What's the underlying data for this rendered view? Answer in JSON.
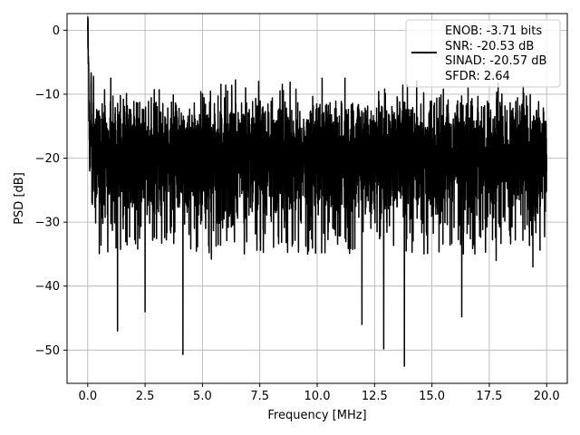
{
  "chart_data": {
    "type": "line",
    "title": "",
    "xlabel": "Frequency [MHz]",
    "ylabel": "PSD [dB]",
    "xlim": [
      -0.9,
      20.9
    ],
    "ylim": [
      -55.2,
      2.6
    ],
    "xticks": [
      0.0,
      2.5,
      5.0,
      7.5,
      10.0,
      12.5,
      15.0,
      17.5,
      20.0
    ],
    "xtick_labels": [
      "0.0",
      "2.5",
      "5.0",
      "7.5",
      "10.0",
      "12.5",
      "15.0",
      "17.5",
      "20.0"
    ],
    "yticks": [
      0,
      -10,
      -20,
      -30,
      -40,
      -50
    ],
    "ytick_labels": [
      "0",
      "−10",
      "−20",
      "−30",
      "−40",
      "−50"
    ],
    "grid": true,
    "legend": {
      "placement": "upper-right",
      "entries": [
        "ENOB: -3.71 bits",
        "SNR: -20.53 dB",
        "SINAD: -20.57 dB",
        "SFDR: 2.64"
      ]
    },
    "series": [
      {
        "color": "#000000",
        "x": [
          0.0,
          0.05,
          0.1,
          0.15,
          0.2,
          0.25,
          0.3,
          0.35,
          0.4,
          0.45,
          0.5,
          1.3,
          2.5,
          4.15,
          4.5,
          6.0,
          7.5,
          9.5,
          11.95,
          12.9,
          13.8,
          16.3,
          17.8,
          19.4,
          20.0
        ],
        "y": [
          0.0,
          -8.0,
          -22.0,
          -10.0,
          -23.0,
          -12.0,
          -25.0,
          -13.0,
          -28.0,
          -14.0,
          -20.0,
          -47.0,
          -44.0,
          -50.7,
          -20.0,
          -20.0,
          -20.0,
          -20.0,
          -46.0,
          -49.8,
          -52.5,
          -44.8,
          -36.0,
          -37.0,
          -22.0
        ]
      }
    ],
    "noise_band": {
      "x_range": [
        0.3,
        20.0
      ],
      "upper_envelope": [
        -15.0,
        -8.0
      ],
      "lower_envelope": [
        -25.0,
        -33.0
      ],
      "center": -20.0
    }
  }
}
